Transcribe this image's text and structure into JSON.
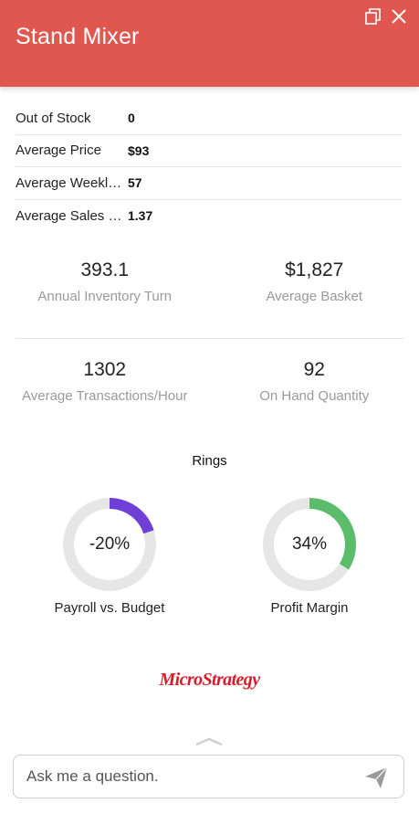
{
  "header": {
    "title": "Stand Mixer",
    "icons": [
      "copy-icon",
      "close-icon"
    ],
    "background": "#e0574f"
  },
  "info_rows": [
    {
      "label": "Out of Stock",
      "value": "0"
    },
    {
      "label": "Average Price",
      "value": "$93"
    },
    {
      "label": "Average Weekly Sales",
      "value": "57"
    },
    {
      "label": "Average Sales Rate",
      "value": "1.37"
    }
  ],
  "kpis": [
    {
      "value": "393.1",
      "caption": "Annual Inventory Turn"
    },
    {
      "value": "$1,827",
      "caption": "Average Basket"
    },
    {
      "value": "1302",
      "caption": "Average Transactions/Hour"
    },
    {
      "value": "92",
      "caption": "On Hand Quantity"
    }
  ],
  "rings": {
    "title": "Rings",
    "items": [
      {
        "label": "Payroll vs. Budget",
        "display": "-20%",
        "fraction": 0.2,
        "color": "#6f3fd6",
        "track": "#e6e6e6"
      },
      {
        "label": "Profit Margin",
        "display": "34%",
        "fraction": 0.34,
        "color": "#5bbd6b",
        "track": "#e6e6e6"
      }
    ]
  },
  "logo": {
    "text": "MicroStrategy",
    "color": "#d21f2b"
  },
  "ask": {
    "placeholder": "Ask me a question."
  }
}
